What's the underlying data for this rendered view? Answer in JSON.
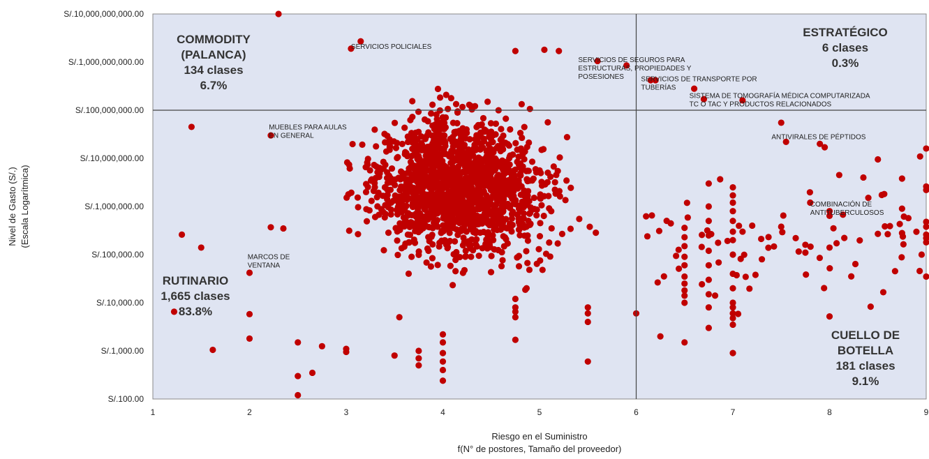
{
  "chart_data": {
    "type": "scatter",
    "xlabel": [
      "Riesgo en el Suministro",
      "f(N° de postores, Tamaño del proveedor)"
    ],
    "ylabel": [
      "Nivel de Gasto (S/.)",
      "(Escala Logarítmica)"
    ],
    "xlim": [
      1,
      9
    ],
    "ylim": [
      100,
      10000000000
    ],
    "yscale": "log",
    "x_ticks": [
      "1",
      "2",
      "3",
      "4",
      "5",
      "6",
      "7",
      "8",
      "9"
    ],
    "y_ticks": [
      "S/.100.00",
      "S/.1,000.00",
      "S/.10,000.00",
      "S/.100,000.00",
      "S/.1,000,000.00",
      "S/.10,000,000.00",
      "S/.100,000,000.00",
      "S/.1,000,000,000.00",
      "S/.10,000,000,000.00"
    ],
    "quadrant_dividers": {
      "x": 6,
      "y": 100000000
    },
    "point_color": "#c00000",
    "plot_background": "#dfe4f2",
    "quadrants": [
      {
        "name": "commodity",
        "lines": [
          "COMMODITY",
          "(PALANCA)",
          "134 clases",
          "6.7%"
        ]
      },
      {
        "name": "estrategico",
        "lines": [
          "ESTRATÉGICO",
          "6 clases",
          "0.3%"
        ]
      },
      {
        "name": "rutinario",
        "lines": [
          "RUTINARIO",
          "1,665 clases",
          "83.8%"
        ]
      },
      {
        "name": "cuello-de-botella",
        "lines": [
          "CUELLO DE",
          "BOTELLA",
          "181 clases",
          "9.1%"
        ]
      }
    ],
    "annotations": [
      {
        "name": "servicios-policiales",
        "lines": [
          "SERVICIOS POLICIALES"
        ],
        "x": 3.05,
        "y": 1900000000
      },
      {
        "name": "servicios-seguros",
        "lines": [
          "SERVICIOS DE SEGUROS PARA",
          "ESTRUCTURAS, PROPIEDADES Y",
          "POSESIONES"
        ],
        "x": 5.4,
        "y": 1000000000
      },
      {
        "name": "servicios-transporte",
        "lines": [
          "SERVICIOS DE TRANSPORTE POR",
          "TUBERÍAS"
        ],
        "x": 6.05,
        "y": 400000000
      },
      {
        "name": "tomografia",
        "lines": [
          "SISTEMA DE TOMOGRAFÍA MÉDICA COMPUTARIZADA",
          "TC O TAC Y PRODUCTOS RELACIONADOS"
        ],
        "x": 6.55,
        "y": 180000000
      },
      {
        "name": "muebles-aulas",
        "lines": [
          "MUEBLES PARA AULAS",
          "EN GENERAL"
        ],
        "x": 2.2,
        "y": 40000000
      },
      {
        "name": "antivirales",
        "lines": [
          "ANTIVIRALES DE  PÉPTIDOS"
        ],
        "x": 7.4,
        "y": 25000000
      },
      {
        "name": "antituberculosos",
        "lines": [
          "COMBINACIÓN DE",
          "ANTITUBERCULOSOS"
        ],
        "x": 7.8,
        "y": 1000000
      },
      {
        "name": "marcos-ventana",
        "lines": [
          "MARCOS DE",
          "VENTANA"
        ],
        "x": 1.98,
        "y": 80000
      },
      {
        "name": "cuello-de-botella-note",
        "lines": [],
        "x": 0,
        "y": 0
      }
    ],
    "points": [
      [
        2.3,
        10000000000
      ],
      [
        1.4,
        45000000
      ],
      [
        1.3,
        260000
      ],
      [
        1.5,
        140000
      ],
      [
        1.22,
        6500
      ],
      [
        1.62,
        1050
      ],
      [
        2.22,
        30000000
      ],
      [
        2.0,
        42000
      ],
      [
        2.0,
        5800
      ],
      [
        2.0,
        1800
      ],
      [
        2.22,
        370000
      ],
      [
        2.35,
        350000
      ],
      [
        2.5,
        1500
      ],
      [
        2.5,
        300
      ],
      [
        2.5,
        120
      ],
      [
        3.15,
        2700000000
      ],
      [
        3.05,
        1900000000
      ],
      [
        4.75,
        1700000000
      ],
      [
        5.2,
        1700000000
      ],
      [
        5.05,
        1800000000
      ],
      [
        5.6,
        1050000000
      ],
      [
        5.9,
        850000000
      ],
      [
        6.15,
        420000000
      ],
      [
        6.2,
        420000000
      ],
      [
        6.6,
        280000000
      ],
      [
        6.7,
        170000000
      ],
      [
        7.1,
        160000000
      ],
      [
        7.5,
        55000000
      ],
      [
        7.55,
        22000000
      ],
      [
        7.9,
        20000000
      ],
      [
        7.95,
        17000000
      ],
      [
        8.1,
        4500000
      ],
      [
        8.35,
        4000000
      ],
      [
        8.5,
        9500000
      ],
      [
        8.75,
        3800000
      ],
      [
        9.0,
        16000000
      ],
      [
        9.0,
        2600000
      ],
      [
        9.0,
        2200000
      ],
      [
        9.0,
        480000
      ],
      [
        9.0,
        380000
      ],
      [
        9.0,
        260000
      ],
      [
        9.0,
        220000
      ],
      [
        9.0,
        180000
      ],
      [
        9.0,
        35000
      ],
      [
        7.8,
        1200000
      ],
      [
        8.0,
        800000
      ],
      [
        8.0,
        640000
      ],
      [
        8.0,
        140000
      ],
      [
        8.0,
        5200
      ],
      [
        8.5,
        270000
      ],
      [
        8.75,
        900000
      ],
      [
        8.75,
        280000
      ],
      [
        7.3,
        80000
      ],
      [
        7.65,
        220000
      ],
      [
        7.5,
        380000
      ],
      [
        7.75,
        160000
      ],
      [
        7.75,
        110000
      ],
      [
        7.2,
        400000
      ],
      [
        7.1,
        300000
      ],
      [
        6.25,
        2000
      ],
      [
        6.5,
        1500
      ],
      [
        6.75,
        3000
      ],
      [
        7.0,
        900
      ],
      [
        5.5,
        600
      ],
      [
        7.0,
        3500
      ],
      [
        7.0,
        4800
      ],
      [
        7.0,
        6000
      ],
      [
        7.0,
        8000
      ],
      [
        7.0,
        10000
      ],
      [
        7.0,
        20000
      ],
      [
        7.0,
        40000
      ],
      [
        7.0,
        100000
      ],
      [
        7.0,
        200000
      ],
      [
        7.0,
        300000
      ],
      [
        7.0,
        500000
      ],
      [
        7.0,
        800000
      ],
      [
        7.0,
        1200000
      ],
      [
        7.0,
        1700000
      ],
      [
        7.0,
        2500000
      ],
      [
        6.5,
        10000
      ],
      [
        6.5,
        14000
      ],
      [
        6.5,
        18000
      ],
      [
        6.5,
        25000
      ],
      [
        6.5,
        35000
      ],
      [
        6.5,
        60000
      ],
      [
        6.5,
        90000
      ],
      [
        6.5,
        150000
      ],
      [
        6.5,
        230000
      ],
      [
        6.5,
        360000
      ],
      [
        6.75,
        8000
      ],
      [
        6.75,
        15000
      ],
      [
        6.75,
        30000
      ],
      [
        6.75,
        60000
      ],
      [
        6.75,
        120000
      ],
      [
        6.75,
        250000
      ],
      [
        6.75,
        500000
      ],
      [
        6.75,
        1000000
      ],
      [
        6.75,
        3000000
      ],
      [
        4.0,
        2200
      ],
      [
        4.0,
        1500
      ],
      [
        4.0,
        900
      ],
      [
        4.0,
        600
      ],
      [
        4.0,
        400
      ],
      [
        4.0,
        240
      ],
      [
        3.75,
        700
      ],
      [
        3.75,
        500
      ],
      [
        3.75,
        1000
      ],
      [
        3.0,
        1100
      ],
      [
        3.0,
        950
      ],
      [
        3.5,
        800
      ],
      [
        2.65,
        350
      ],
      [
        2.75,
        1250
      ],
      [
        3.55,
        5000
      ],
      [
        4.75,
        1700
      ],
      [
        4.75,
        5000
      ],
      [
        4.75,
        6500
      ],
      [
        4.75,
        8000
      ],
      [
        4.75,
        12000
      ],
      [
        6.0,
        6000
      ],
      [
        5.5,
        4000
      ],
      [
        5.5,
        6000
      ],
      [
        5.5,
        8000
      ]
    ],
    "cluster_center": [
      4.2,
      2500000
    ],
    "cluster_size": 1650
  }
}
